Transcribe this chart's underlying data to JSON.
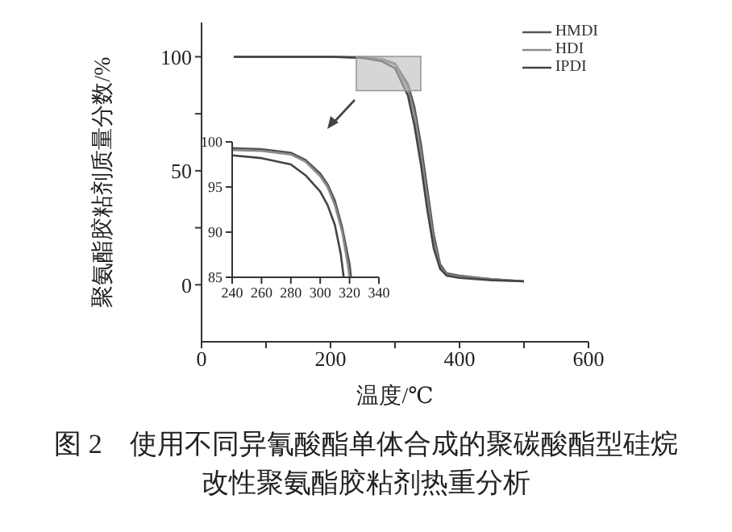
{
  "chart_data": [
    {
      "type": "line",
      "title": "图 2　使用不同异氰酸酯单体合成的聚碳酸酯型硅烷改性聚氨酯胶粘剂热重分析",
      "xlabel": "温度/℃",
      "ylabel": "聚氨酯胶粘剂质量分数/%",
      "x": [
        50,
        100,
        200,
        250,
        280,
        300,
        320,
        330,
        340,
        350,
        360,
        370,
        380,
        400,
        450,
        500
      ],
      "series": [
        {
          "name": "HMDI",
          "color": "#555555",
          "values": [
            100,
            100,
            100,
            99.8,
            99,
            97,
            88,
            78,
            62,
            42,
            22,
            9,
            5,
            4,
            2.5,
            1.5
          ]
        },
        {
          "name": "HDI",
          "color": "#8a8a8a",
          "values": [
            100,
            100,
            100,
            99.7,
            98.8,
            96.5,
            86,
            75,
            58,
            38,
            19,
            8,
            4.5,
            3.5,
            2.5,
            1.5
          ]
        },
        {
          "name": "IPDI",
          "color": "#444444",
          "values": [
            100,
            100,
            100,
            99.5,
            98,
            95,
            83,
            70,
            53,
            33,
            16,
            7,
            4,
            3,
            2,
            1.5
          ]
        }
      ],
      "xlim": [
        0,
        600
      ],
      "xticks": [
        0,
        {
          "value": 100,
          "label": null
        },
        200,
        {
          "value": 300,
          "label": null
        },
        400,
        {
          "value": 500,
          "label": null
        },
        600
      ],
      "ylim": [
        -25,
        115
      ],
      "yticks": [
        0,
        {
          "value": 25,
          "label": null
        },
        50,
        {
          "value": 75,
          "label": null
        },
        100
      ],
      "legend": "top right",
      "marker": "none",
      "line_style": "solid",
      "grid": false
    },
    {
      "type": "line",
      "series": [
        {
          "color": "#555555",
          "x": [
            240,
            260,
            280,
            290,
            300,
            305,
            310,
            315,
            320,
            321
          ],
          "values": [
            99.3,
            99.2,
            98.8,
            98,
            96.5,
            95.3,
            93.5,
            90.5,
            86.5,
            85
          ]
        },
        {
          "color": "#8a8a8a",
          "x": [
            240,
            260,
            280,
            290,
            300,
            305,
            310,
            315,
            319,
            320
          ],
          "values": [
            99.1,
            99,
            98.6,
            97.8,
            96.2,
            95,
            93,
            90,
            86.2,
            85
          ]
        },
        {
          "color": "#444444",
          "x": [
            240,
            260,
            280,
            290,
            300,
            305,
            310,
            314,
            316
          ],
          "values": [
            98.5,
            98.2,
            97.5,
            96.3,
            94.5,
            93,
            90.8,
            87.6,
            85
          ]
        }
      ],
      "xlim": [
        240,
        340
      ],
      "xticks": [
        240,
        260,
        280,
        300,
        320,
        340
      ],
      "ylim": [
        85,
        100
      ],
      "yticks": [
        85,
        90,
        95,
        100
      ],
      "marker": "none",
      "line_style": "solid",
      "grid": false
    }
  ]
}
